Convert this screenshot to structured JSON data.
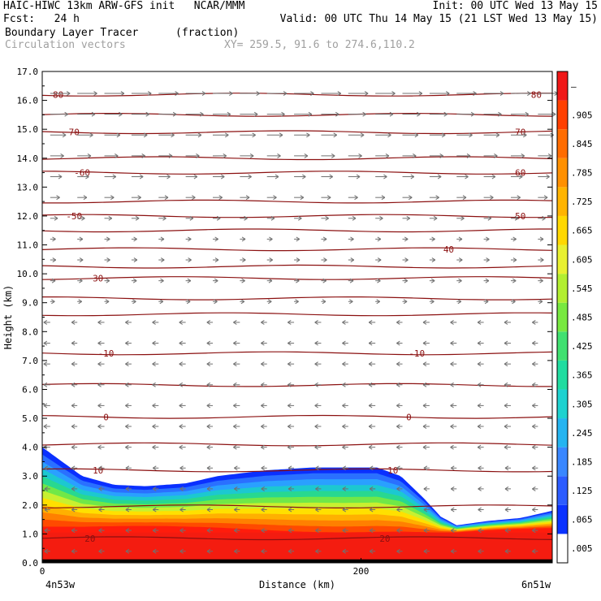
{
  "header": {
    "model_line": "HAIC-HIWC 13km ARW-GFS init   NCAR/MMM",
    "init": "Init: 00 UTC Wed 13 May 15",
    "fcst": "Fcst:   24 h",
    "valid": "Valid: 00 UTC Thu 14 May 15 (21 LST Wed 13 May 15)",
    "field": "Boundary Layer Tracer",
    "units": "(fraction)",
    "vectors": "Circulation vectors",
    "xy": "XY= 259.5, 91.6 to 274.6,110.2"
  },
  "chart_data": {
    "type": "heatmap",
    "xlabel": "Distance (km)",
    "ylabel": "Height (km)",
    "x_ticks": [
      {
        "v": 0,
        "label": "0"
      },
      {
        "v": 200,
        "label": "200"
      }
    ],
    "x_end_labels": {
      "left": "4n53w",
      "right": "6n51w"
    },
    "xlim": [
      0,
      320
    ],
    "ylim": [
      0,
      17
    ],
    "y_ticks": [
      "0.0",
      "1.0",
      "2.0",
      "3.0",
      "4.0",
      "5.0",
      "6.0",
      "7.0",
      "8.0",
      "9.0",
      "10.0",
      "11.0",
      "12.0",
      "13.0",
      "14.0",
      "15.0",
      "16.0",
      "17.0"
    ],
    "tracer_top_km": [
      [
        0,
        4.0
      ],
      [
        10,
        3.6
      ],
      [
        25,
        3.0
      ],
      [
        45,
        2.7
      ],
      [
        65,
        2.65
      ],
      [
        90,
        2.75
      ],
      [
        110,
        3.0
      ],
      [
        140,
        3.2
      ],
      [
        170,
        3.3
      ],
      [
        210,
        3.3
      ],
      [
        225,
        3.0
      ],
      [
        240,
        2.2
      ],
      [
        250,
        1.6
      ],
      [
        260,
        1.3
      ],
      [
        280,
        1.45
      ],
      [
        300,
        1.55
      ],
      [
        320,
        1.8
      ]
    ],
    "colorbar": {
      "labels": [
        ".005",
        ".065",
        ".125",
        ".185",
        ".245",
        ".305",
        ".365",
        ".425",
        ".485",
        ".545",
        ".605",
        ".665",
        ".725",
        ".785",
        ".845",
        ".905",
        "–"
      ],
      "colors": [
        "#ffffff",
        "#0a32ff",
        "#2c5cff",
        "#3a87ff",
        "#25b4f0",
        "#1ed2d0",
        "#21dca0",
        "#40e070",
        "#78e840",
        "#b2ee30",
        "#e8f030",
        "#ffd800",
        "#ffb400",
        "#ff9000",
        "#ff6c00",
        "#ff4000",
        "#f01818"
      ]
    },
    "isotherms": [
      {
        "v": 20,
        "km": 0.85,
        "labels": [
          [
            30,
            "20"
          ],
          [
            215,
            "20"
          ]
        ]
      },
      {
        "v": 10,
        "km": 3.2,
        "labels": [
          [
            35,
            "10"
          ],
          [
            220,
            "10"
          ]
        ]
      },
      {
        "v": 0,
        "km": 5.05,
        "labels": [
          [
            40,
            "0"
          ],
          [
            230,
            "0"
          ]
        ]
      },
      {
        "v": -10,
        "km": 7.25,
        "labels": [
          [
            40,
            "-10"
          ],
          [
            235,
            "-10"
          ]
        ]
      },
      {
        "v": -20,
        "km": 8.6,
        "labels": []
      },
      {
        "v": -30,
        "km": 9.85,
        "labels": [
          [
            35,
            "30"
          ]
        ]
      },
      {
        "v": -40,
        "km": 10.85,
        "labels": [
          [
            255,
            "40"
          ]
        ]
      },
      {
        "v": -50,
        "km": 12.0,
        "labels": [
          [
            20,
            "-50"
          ],
          [
            300,
            "50"
          ]
        ]
      },
      {
        "v": -60,
        "km": 13.5,
        "labels": [
          [
            25,
            "-60"
          ],
          [
            300,
            "60"
          ]
        ]
      },
      {
        "v": -70,
        "km": 14.9,
        "labels": [
          [
            20,
            "70"
          ],
          [
            300,
            "70"
          ]
        ]
      },
      {
        "v": -80,
        "km": 16.2,
        "labels": [
          [
            10,
            "80"
          ],
          [
            310,
            "80"
          ]
        ]
      }
    ],
    "extra_isotherm_lines_km": [
      1.95,
      4.1,
      6.15,
      9.15,
      10.25,
      11.5,
      12.5,
      14.0,
      15.5
    ]
  }
}
